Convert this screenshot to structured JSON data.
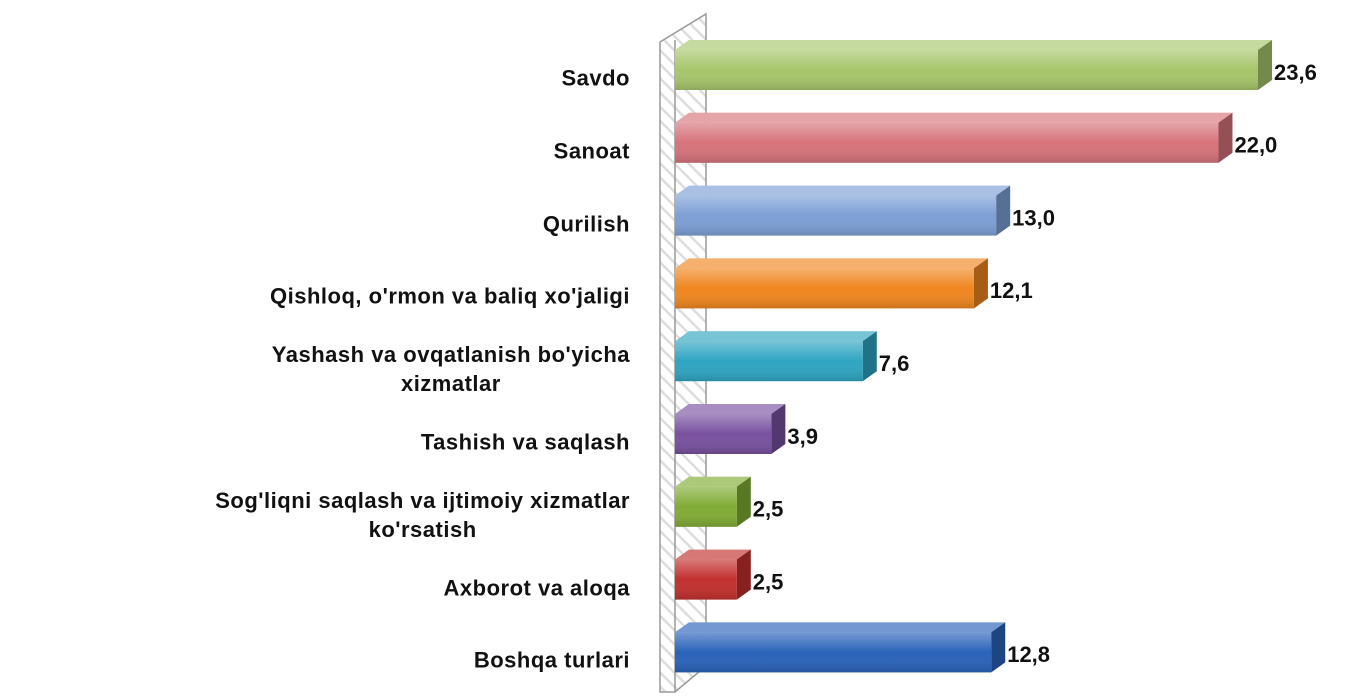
{
  "chart_data": {
    "type": "bar",
    "orientation": "horizontal",
    "categories": [
      "Savdo",
      "Sanoat",
      "Qurilish",
      "Qishloq, o'rmon va baliq xo'jaligi",
      "Yashash va ovqatlanish bo'yicha\nxizmatlar",
      "Tashish va saqlash",
      "Sog'liqni saqlash va ijtimoiy xizmatlar\nko'rsatish",
      "Axborot va aloqa",
      "Boshqa turlari"
    ],
    "values": [
      23.6,
      22.0,
      13.0,
      12.1,
      7.6,
      3.9,
      2.5,
      2.5,
      12.8
    ],
    "value_labels": [
      "23,6",
      "22,0",
      "13,0",
      "12,1",
      "7,6",
      "3,9",
      "2,5",
      "2,5",
      "12,8"
    ],
    "colors": [
      "#a6c66a",
      "#d6737a",
      "#7c9fd6",
      "#f0861f",
      "#2ea5c2",
      "#7851a0",
      "#80ac34",
      "#c2302e",
      "#2a63ba"
    ],
    "xlim": [
      0,
      27
    ]
  }
}
